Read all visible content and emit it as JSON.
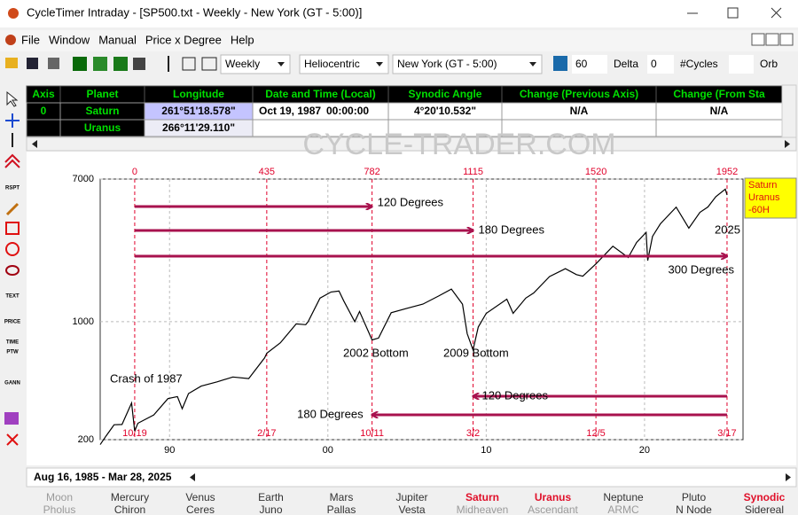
{
  "window": {
    "title": "CycleTimer Intraday - [SP500.txt - Weekly - New York (GT - 5:00)]",
    "menu": [
      "File",
      "Window",
      "Manual",
      "Price x Degree",
      "Help"
    ]
  },
  "toolbar": {
    "interval": "Weekly",
    "coordinate": "Heliocentric",
    "timezone": "New York (GT - 5:00)",
    "count": "60",
    "delta_label": "Delta",
    "delta": "0",
    "cycles_label": "#Cycles",
    "orb_label": "Orb"
  },
  "tools": [
    "RSPT",
    "TEXT",
    "PRICE",
    "TIME",
    "PTW",
    "GANN"
  ],
  "table": {
    "headers": [
      "Axis",
      "Planet",
      "Longitude",
      "Date and Time (Local)",
      "Synodic Angle",
      "Change (Previous Axis)",
      "Change (From Sta"
    ],
    "rows": [
      {
        "axis": "0",
        "planet": "Saturn",
        "longitude": "261°51'18.578\"",
        "date": "Oct 19, 1987",
        "time": "00:00:00",
        "synodic": "4°20'10.532\"",
        "change_prev": "N/A",
        "change_start": "N/A"
      },
      {
        "planet": "Uranus",
        "longitude": "266°11'29.110\""
      }
    ]
  },
  "watermark": "CYCLE-TRADER.COM",
  "chart_data": {
    "type": "line",
    "log_y": true,
    "grid": true,
    "xlim": [
      1985.62,
      2026.22
    ],
    "xticks": [
      {
        "value": 1990,
        "label": "90"
      },
      {
        "value": 2000,
        "label": "00"
      },
      {
        "value": 2010,
        "label": "10"
      },
      {
        "value": 2020,
        "label": "20"
      }
    ],
    "ylim": [
      200,
      7000
    ],
    "yticks": [
      200,
      1000,
      7000
    ],
    "series": [
      {
        "color": "#000000",
        "x": [
          1985.62,
          1986.0,
          1986.5,
          1987.0,
          1987.6,
          1987.8,
          1988.0,
          1989.0,
          1989.9,
          1990.5,
          1990.8,
          1991.2,
          1992.0,
          1993.0,
          1994.0,
          1995.0,
          1996.0,
          1996.14,
          1997.0,
          1998.0,
          1998.6,
          1998.75,
          1999.5,
          2000.2,
          2000.7,
          2001.0,
          2001.7,
          2002.0,
          2002.5,
          2002.79,
          2003.2,
          2004.0,
          2005.0,
          2006.0,
          2007.0,
          2007.8,
          2008.5,
          2008.8,
          2009.17,
          2009.5,
          2010.0,
          2011.3,
          2011.7,
          2012.5,
          2013.0,
          2014.0,
          2015.0,
          2015.7,
          2016.1,
          2016.93,
          2018.0,
          2018.97,
          2019.5,
          2020.1,
          2020.2,
          2020.5,
          2021.0,
          2022.0,
          2022.8,
          2023.5,
          2024.0,
          2024.5,
          2025.1,
          2025.21
        ],
        "values": [
          187,
          211,
          245,
          246,
          330,
          225,
          250,
          280,
          350,
          360,
          305,
          375,
          415,
          440,
          470,
          460,
          610,
          650,
          750,
          970,
          960,
          1000,
          1380,
          1500,
          1520,
          1330,
          1000,
          1150,
          900,
          780,
          800,
          1130,
          1200,
          1270,
          1420,
          1560,
          1270,
          850,
          680,
          930,
          1120,
          1360,
          1120,
          1380,
          1480,
          1850,
          2060,
          1900,
          1860,
          2200,
          2800,
          2400,
          2950,
          3380,
          2300,
          3200,
          3800,
          4770,
          3580,
          4450,
          4780,
          5500,
          6100,
          5640
        ]
      }
    ],
    "cycle_lines": {
      "color": "#e0002a",
      "weeks": [
        0,
        435,
        782,
        1115,
        1520,
        1952
      ],
      "dates": [
        "10/19",
        "2/17",
        "10/11",
        "3/2",
        "12/5",
        "3/17"
      ],
      "x": [
        1987.8,
        1996.14,
        2002.79,
        2009.17,
        2016.93,
        2025.21
      ]
    },
    "arrow_color": "#a8124e",
    "arrows": [
      "120 Degrees",
      "180 Degrees",
      "300 Degrees",
      "120 Degrees",
      "180 Degrees"
    ],
    "annotations": [
      "Crash of 1987",
      "2002 Bottom",
      "2009 Bottom",
      "2025"
    ],
    "legend_box": [
      "Saturn",
      "Uranus",
      "-60H"
    ]
  },
  "footer": {
    "range": "Aug 16, 1985 - Mar 28, 2025",
    "planets": [
      [
        "Moon",
        "Pholus"
      ],
      [
        "Mercury",
        "Chiron"
      ],
      [
        "Venus",
        "Ceres"
      ],
      [
        "Earth",
        "Juno"
      ],
      [
        "Mars",
        "Pallas"
      ],
      [
        "Jupiter",
        "Vesta"
      ],
      [
        "Saturn",
        "Midheaven"
      ],
      [
        "Uranus",
        "Ascendant"
      ],
      [
        "Neptune",
        "ARMC"
      ],
      [
        "Pluto",
        "N Node"
      ],
      [
        "Synodic",
        "Sidereal"
      ]
    ],
    "colors": [
      [
        "#9a9a9a",
        "#9a9a9a"
      ],
      [
        "#333333",
        "#333333"
      ],
      [
        "#333333",
        "#333333"
      ],
      [
        "#333333",
        "#333333"
      ],
      [
        "#333333",
        "#333333"
      ],
      [
        "#333333",
        "#333333"
      ],
      [
        "#e0102a",
        "#9a9a9a"
      ],
      [
        "#e0102a",
        "#9a9a9a"
      ],
      [
        "#333333",
        "#9a9a9a"
      ],
      [
        "#333333",
        "#333333"
      ],
      [
        "#e0102a",
        "#333333"
      ]
    ]
  }
}
